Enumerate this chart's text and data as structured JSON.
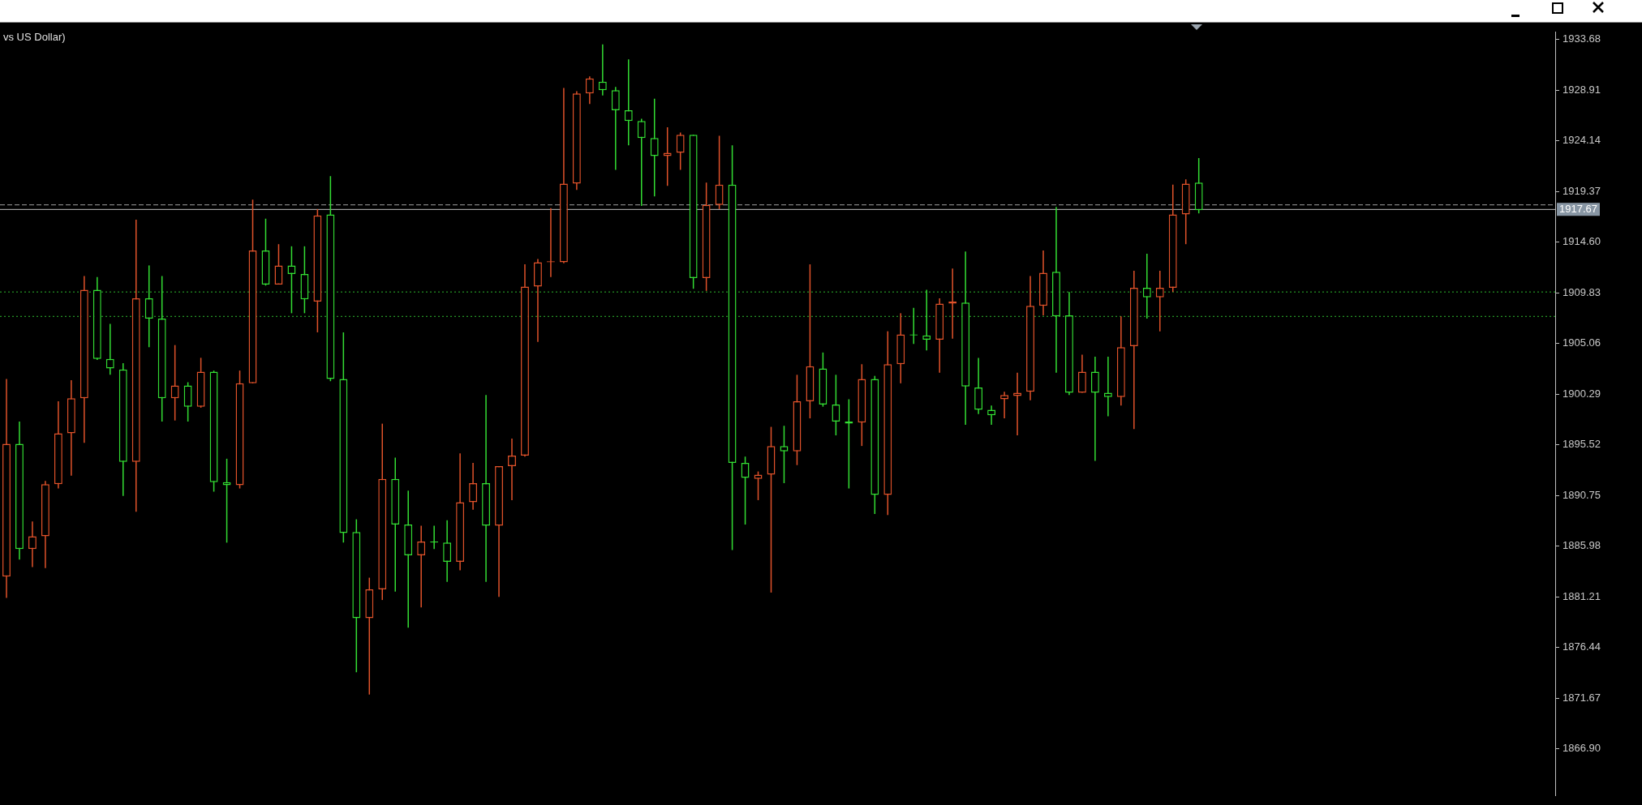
{
  "chart_data": {
    "type": "candlestick",
    "title": "vs US Dollar)",
    "categories": [
      null,
      null,
      null,
      null,
      null,
      null,
      null,
      null,
      null,
      null,
      null,
      null,
      null,
      null,
      null,
      null,
      null,
      null,
      null,
      null,
      null,
      null,
      null,
      null,
      null,
      null,
      null,
      null,
      null,
      null,
      null,
      null,
      null,
      null,
      null,
      null,
      null,
      null,
      null,
      null,
      null,
      null,
      null,
      null,
      null,
      null,
      null,
      null,
      null,
      null,
      null,
      null,
      null,
      null,
      null,
      null,
      null,
      null,
      null,
      null,
      null,
      null,
      null,
      null,
      null,
      null,
      null,
      null,
      null,
      null,
      null,
      null,
      null,
      null,
      null,
      null,
      null,
      null,
      null,
      null,
      null,
      null,
      null,
      null,
      null,
      null,
      null,
      null,
      null,
      null,
      null,
      null,
      null,
      null,
      null,
      null,
      null,
      null,
      null,
      null,
      null,
      null,
      null,
      null,
      null,
      null,
      null,
      null,
      null,
      null,
      null,
      null,
      null,
      null,
      null,
      null,
      null,
      null,
      null,
      null
    ],
    "ohlc": [
      [
        1883.1,
        1901.7,
        1881.1,
        1895.6
      ],
      [
        1895.6,
        1897.7,
        1884.7,
        1885.7
      ],
      [
        1885.7,
        1888.3,
        1884.0,
        1886.9
      ],
      [
        1886.9,
        1892.1,
        1883.9,
        1891.8
      ],
      [
        1891.8,
        1899.6,
        1891.4,
        1896.6
      ],
      [
        1896.6,
        1901.6,
        1892.6,
        1899.9
      ],
      [
        1899.9,
        1911.4,
        1895.7,
        1910.1
      ],
      [
        1910.1,
        1911.3,
        1903.5,
        1903.6
      ],
      [
        1903.6,
        1906.9,
        1902.1,
        1902.7
      ],
      [
        1902.6,
        1903.2,
        1890.7,
        1893.9
      ],
      [
        1893.9,
        1916.7,
        1889.2,
        1909.3
      ],
      [
        1909.3,
        1912.4,
        1904.7,
        1907.4
      ],
      [
        1907.4,
        1911.4,
        1897.7,
        1899.9
      ],
      [
        1899.9,
        1904.9,
        1897.8,
        1901.1
      ],
      [
        1901.1,
        1901.4,
        1897.7,
        1899.1
      ],
      [
        1899.1,
        1903.7,
        1899.0,
        1902.4
      ],
      [
        1902.4,
        1902.5,
        1891.1,
        1892.0
      ],
      [
        1892.0,
        1894.2,
        1886.3,
        1891.7
      ],
      [
        1891.7,
        1902.5,
        1891.4,
        1901.3
      ],
      [
        1901.3,
        1918.6,
        1901.3,
        1913.8
      ],
      [
        1913.8,
        1916.8,
        1910.5,
        1910.6
      ],
      [
        1910.6,
        1914.4,
        1910.6,
        1912.4
      ],
      [
        1912.4,
        1914.2,
        1907.9,
        1911.6
      ],
      [
        1911.6,
        1914.2,
        1907.9,
        1909.2
      ],
      [
        1909.0,
        1917.7,
        1906.1,
        1917.1
      ],
      [
        1917.2,
        1920.8,
        1901.5,
        1901.7
      ],
      [
        1901.7,
        1906.1,
        1886.3,
        1887.2
      ],
      [
        1887.3,
        1888.5,
        1874.1,
        1879.2
      ],
      [
        1879.2,
        1883.0,
        1872.0,
        1881.9
      ],
      [
        1881.9,
        1897.5,
        1880.9,
        1892.3
      ],
      [
        1892.3,
        1894.3,
        1881.7,
        1888.0
      ],
      [
        1888.0,
        1891.2,
        1878.3,
        1885.1
      ],
      [
        1885.1,
        1887.9,
        1880.2,
        1886.4
      ],
      [
        1886.4,
        1887.9,
        1885.7,
        1886.3
      ],
      [
        1886.3,
        1888.4,
        1882.6,
        1884.5
      ],
      [
        1884.5,
        1894.7,
        1883.7,
        1890.1
      ],
      [
        1890.1,
        1893.8,
        1889.4,
        1891.9
      ],
      [
        1891.9,
        1900.2,
        1882.6,
        1887.9
      ],
      [
        1887.9,
        1893.5,
        1881.2,
        1893.5
      ],
      [
        1893.5,
        1896.1,
        1890.3,
        1894.5
      ],
      [
        1894.5,
        1912.5,
        1894.4,
        1910.4
      ],
      [
        1910.4,
        1913.0,
        1905.2,
        1912.7
      ],
      [
        1912.7,
        1917.8,
        1911.3,
        1912.8
      ],
      [
        1912.7,
        1929.1,
        1912.6,
        1920.1
      ],
      [
        1920.1,
        1928.8,
        1919.5,
        1928.6
      ],
      [
        1928.6,
        1930.2,
        1927.6,
        1930.0
      ],
      [
        1929.7,
        1933.2,
        1928.4,
        1928.9
      ],
      [
        1928.9,
        1929.2,
        1921.4,
        1927.0
      ],
      [
        1927.0,
        1931.8,
        1923.7,
        1926.0
      ],
      [
        1926.0,
        1926.2,
        1918.0,
        1924.4
      ],
      [
        1924.4,
        1928.1,
        1918.9,
        1922.7
      ],
      [
        1922.7,
        1925.4,
        1919.9,
        1923.0
      ],
      [
        1923.0,
        1924.9,
        1921.4,
        1924.7
      ],
      [
        1924.7,
        1924.7,
        1910.2,
        1911.2
      ],
      [
        1911.2,
        1920.2,
        1910.0,
        1918.1
      ],
      [
        1918.1,
        1924.6,
        1917.7,
        1920.0
      ],
      [
        1920.0,
        1923.7,
        1885.6,
        1893.8
      ],
      [
        1893.8,
        1894.4,
        1888.0,
        1892.4
      ],
      [
        1892.3,
        1893.0,
        1890.3,
        1892.7
      ],
      [
        1892.7,
        1897.2,
        1881.6,
        1895.4
      ],
      [
        1895.4,
        1897.3,
        1891.9,
        1894.9
      ],
      [
        1894.9,
        1902.1,
        1893.6,
        1899.6
      ],
      [
        1899.6,
        1912.5,
        1898.0,
        1902.9
      ],
      [
        1902.7,
        1904.2,
        1899.1,
        1899.3
      ],
      [
        1899.3,
        1902.1,
        1896.4,
        1897.7
      ],
      [
        1897.7,
        1899.8,
        1891.4,
        1897.5
      ],
      [
        1897.6,
        1903.1,
        1895.4,
        1901.7
      ],
      [
        1901.7,
        1902.0,
        1889.0,
        1890.8
      ],
      [
        1890.8,
        1906.2,
        1888.9,
        1903.1
      ],
      [
        1903.1,
        1907.9,
        1901.3,
        1905.9
      ],
      [
        1905.9,
        1908.4,
        1905.0,
        1905.8
      ],
      [
        1905.8,
        1910.1,
        1904.4,
        1905.4
      ],
      [
        1905.4,
        1909.3,
        1902.3,
        1908.8
      ],
      [
        1908.8,
        1912.1,
        1905.5,
        1909.0
      ],
      [
        1908.9,
        1913.7,
        1897.4,
        1901.0
      ],
      [
        1900.9,
        1903.7,
        1898.4,
        1898.8
      ],
      [
        1898.8,
        1899.2,
        1897.4,
        1898.3
      ],
      [
        1899.8,
        1900.5,
        1898.0,
        1900.2
      ],
      [
        1900.1,
        1902.3,
        1896.4,
        1900.4
      ],
      [
        1900.5,
        1911.4,
        1899.7,
        1908.6
      ],
      [
        1908.6,
        1913.8,
        1907.7,
        1911.7
      ],
      [
        1911.8,
        1917.9,
        1902.3,
        1907.6
      ],
      [
        1907.7,
        1909.9,
        1900.2,
        1900.4
      ],
      [
        1900.4,
        1904.0,
        1900.4,
        1902.4
      ],
      [
        1902.4,
        1903.8,
        1894.0,
        1900.4
      ],
      [
        1900.4,
        1903.8,
        1898.2,
        1900.0
      ],
      [
        1900.0,
        1907.6,
        1899.2,
        1904.7
      ],
      [
        1904.8,
        1911.9,
        1897.0,
        1910.3
      ],
      [
        1910.3,
        1913.5,
        1907.4,
        1909.4
      ],
      [
        1909.4,
        1911.9,
        1906.2,
        1910.3
      ],
      [
        1910.3,
        1920.0,
        1909.9,
        1917.2
      ],
      [
        1917.2,
        1920.5,
        1914.4,
        1920.1
      ],
      [
        1920.2,
        1922.5,
        1917.3,
        1917.6
      ],
      null,
      null,
      null,
      null,
      null,
      null,
      null,
      null,
      null,
      null,
      null,
      null,
      null,
      null,
      null,
      null,
      null,
      null,
      null,
      null,
      null,
      null,
      null,
      null,
      null,
      null,
      null
    ],
    "colors": [
      "#e0522a",
      "#33dd33",
      "#e0522a",
      "#e0522a",
      "#e0522a",
      "#e0522a",
      "#e0522a",
      "#33dd33",
      "#33dd33",
      "#33dd33",
      "#e0522a",
      "#33dd33",
      "#33dd33",
      "#e0522a",
      "#33dd33",
      "#e0522a",
      "#33dd33",
      "#33dd33",
      "#e0522a",
      "#e0522a",
      "#33dd33",
      "#e0522a",
      "#33dd33",
      "#33dd33",
      "#e0522a",
      "#33dd33",
      "#33dd33",
      "#33dd33",
      "#e0522a",
      "#e0522a",
      "#33dd33",
      "#33dd33",
      "#e0522a",
      "#33dd33",
      "#33dd33",
      "#e0522a",
      "#e0522a",
      "#33dd33",
      "#e0522a",
      "#e0522a",
      "#e0522a",
      "#e0522a",
      "#e0522a",
      "#e0522a",
      "#e0522a",
      "#e0522a",
      "#33dd33",
      "#33dd33",
      "#33dd33",
      "#33dd33",
      "#33dd33",
      "#e0522a",
      "#e0522a",
      "#33dd33",
      "#e0522a",
      "#e0522a",
      "#33dd33",
      "#33dd33",
      "#e0522a",
      "#e0522a",
      "#33dd33",
      "#e0522a",
      "#e0522a",
      "#33dd33",
      "#33dd33",
      "#33dd33",
      "#e0522a",
      "#33dd33",
      "#e0522a",
      "#e0522a",
      "#33dd33",
      "#33dd33",
      "#e0522a",
      "#e0522a",
      "#33dd33",
      "#33dd33",
      "#33dd33",
      "#e0522a",
      "#e0522a",
      "#e0522a",
      "#e0522a",
      "#33dd33",
      "#33dd33",
      "#e0522a",
      "#33dd33",
      "#33dd33",
      "#e0522a",
      "#e0522a",
      "#33dd33",
      "#e0522a",
      "#e0522a",
      "#e0522a",
      "#33dd33",
      null,
      null,
      null,
      null,
      null,
      null,
      null,
      null,
      null,
      null,
      null,
      null,
      null,
      null,
      null,
      null,
      null,
      null,
      null,
      null,
      null,
      null,
      null,
      null,
      null,
      null,
      null
    ],
    "ylim": [
      1862.5,
      1934.35
    ],
    "yticks": [
      1933.68,
      1928.91,
      1924.14,
      1919.37,
      {
        "value": 1914.6,
        "label": "1914.60"
      },
      1909.83,
      1905.06,
      1900.29,
      1895.52,
      1890.75,
      1885.98,
      1881.21,
      1876.44,
      1871.67,
      {
        "value": 1866.9,
        "label": "1866.90"
      }
    ],
    "ref_lines": [
      {
        "axis": "y",
        "value": 1918.1,
        "color": "#a0a0a0",
        "line_style": "dashed"
      },
      {
        "axis": "y",
        "value": 1917.67,
        "label": "1917.67",
        "color": "#c0c0c0",
        "line_style": "solid"
      },
      {
        "axis": "y",
        "value": 1909.9,
        "color": "#2eb82e",
        "line_style": "dotted"
      },
      {
        "axis": "y",
        "value": 1907.6,
        "color": "#2eb82e",
        "line_style": "dotted"
      }
    ],
    "tick_labels": "y",
    "grid": false,
    "legend": false
  }
}
